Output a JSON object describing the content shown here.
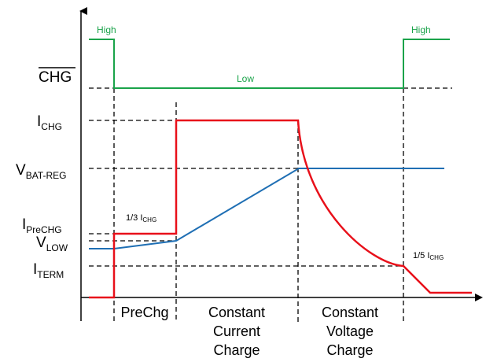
{
  "chg_signal": {
    "name": "CHG",
    "high_label": "High",
    "low_label": "Low",
    "high_label_right": "High",
    "color": "#1aa34a"
  },
  "levels": {
    "ichg": {
      "main": "I",
      "sub": "CHG"
    },
    "vbatreg": {
      "main": "V",
      "sub": "BAT-REG"
    },
    "iprechg": {
      "main": "I",
      "sub": "PreCHG"
    },
    "vlow": {
      "main": "V",
      "sub": "LOW"
    },
    "iterm": {
      "main": "I",
      "sub": "TERM"
    }
  },
  "annotations": {
    "one_third": {
      "text": "1/3 I",
      "sub": "CHG"
    },
    "one_fifth": {
      "text": "1/5 I",
      "sub": "CHG"
    }
  },
  "phases": {
    "prechg": [
      "PreChg"
    ],
    "cc": [
      "Constant",
      "Current",
      "Charge"
    ],
    "cv": [
      "Constant",
      "Voltage",
      "Charge"
    ]
  },
  "colors": {
    "current": "#e8101a",
    "voltage": "#1f6fb4",
    "chg": "#1aa34a",
    "axes": "#000000"
  }
}
